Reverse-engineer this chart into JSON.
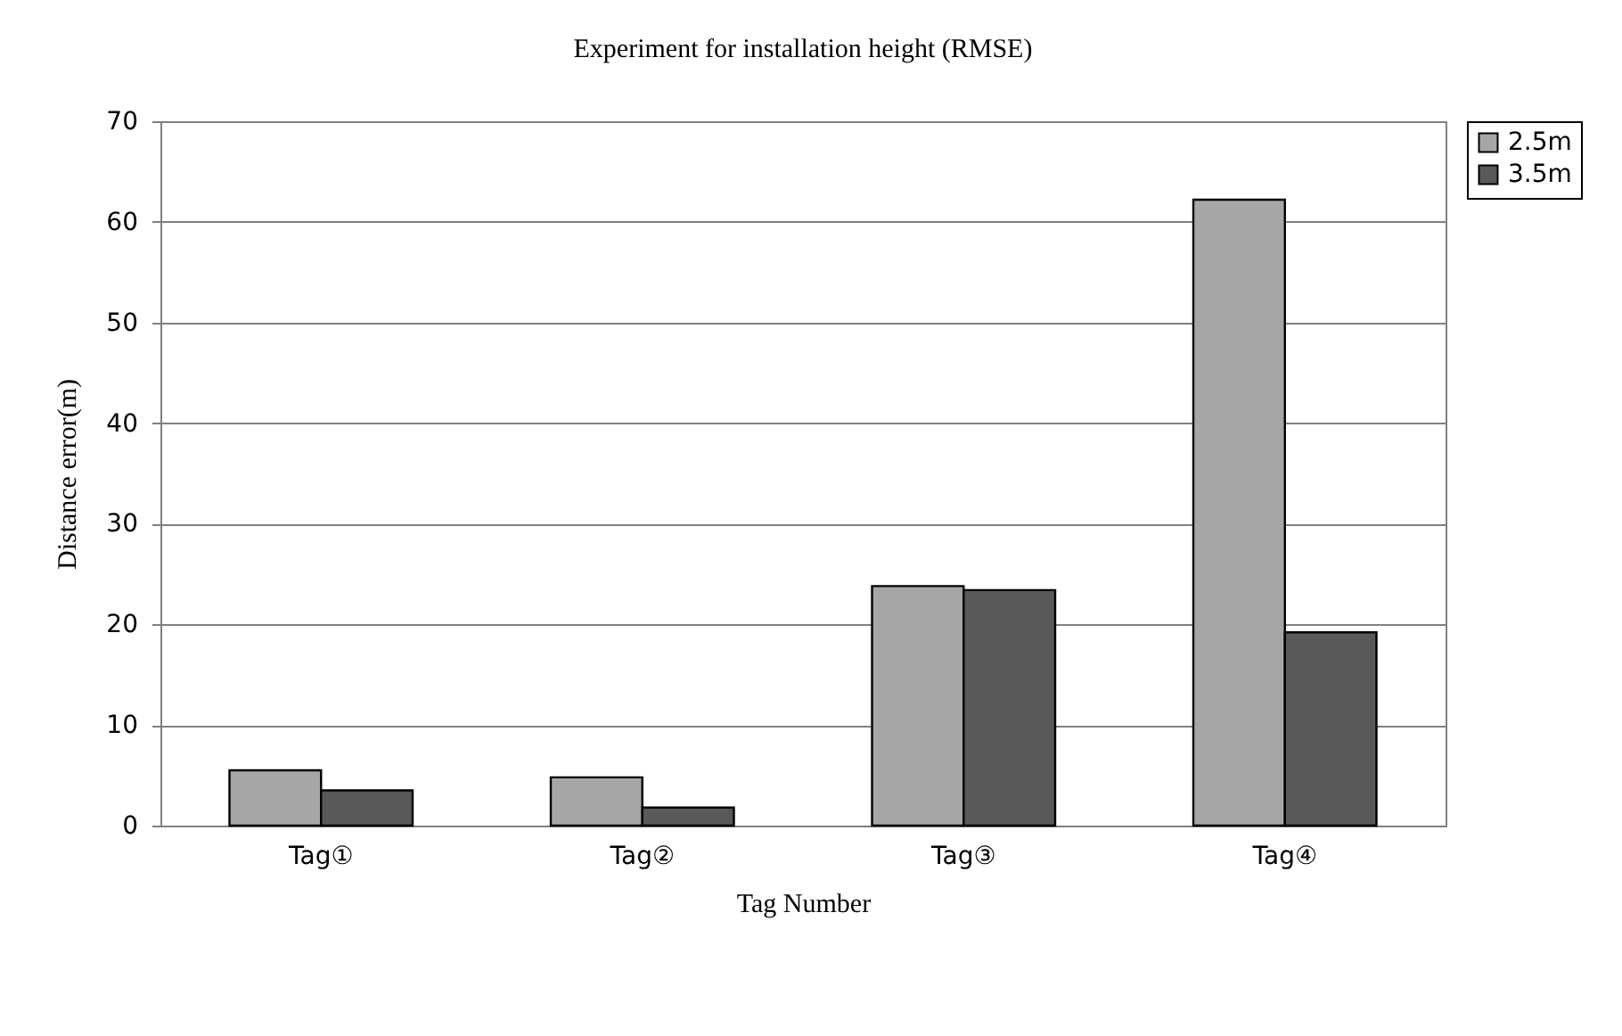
{
  "chart_data": {
    "type": "bar",
    "title": "Experiment for installation height (RMSE)",
    "xlabel": "Tag Number",
    "ylabel": "Distance error(m)",
    "categories": [
      "Tag①",
      "Tag②",
      "Tag③",
      "Tag④"
    ],
    "series": [
      {
        "name": "2.5m",
        "color": "#a6a6a6",
        "values": [
          5.5,
          4.8,
          23.8,
          62.2
        ]
      },
      {
        "name": "3.5m",
        "color": "#595959",
        "values": [
          3.5,
          1.8,
          23.4,
          19.2
        ]
      }
    ],
    "ylim": [
      0,
      70
    ],
    "yticks": [
      0,
      10,
      20,
      30,
      40,
      50,
      60,
      70
    ],
    "grid": "y",
    "legend": "right"
  }
}
